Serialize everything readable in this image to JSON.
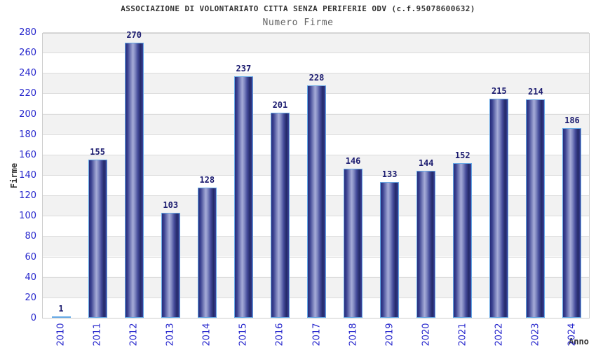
{
  "header": {
    "title": "ASSOCIAZIONE DI VOLONTARIATO CITTA SENZA PERIFERIE ODV (c.f.95078600632)",
    "subtitle": "Numero Firme"
  },
  "chart_data": {
    "type": "bar",
    "title": "ASSOCIAZIONE DI VOLONTARIATO CITTA SENZA PERIFERIE ODV (c.f.95078600632)",
    "subtitle": "Numero Firme",
    "xlabel": "Anno",
    "ylabel": "Firme",
    "categories": [
      "2010",
      "2011",
      "2012",
      "2013",
      "2014",
      "2015",
      "2016",
      "2017",
      "2018",
      "2019",
      "2020",
      "2021",
      "2022",
      "2023",
      "2024"
    ],
    "values": [
      1,
      155,
      270,
      103,
      128,
      237,
      201,
      228,
      146,
      133,
      144,
      152,
      215,
      214,
      186
    ],
    "ylim": [
      0,
      280
    ],
    "ytick_step": 20,
    "yticks": [
      0,
      20,
      40,
      60,
      80,
      100,
      120,
      140,
      160,
      180,
      200,
      220,
      240,
      260,
      280
    ],
    "grid": "horizontal-bands",
    "legend": "none",
    "colors": {
      "tick_label": "#2525cc",
      "value_label": "#1b1b6f",
      "bar_border": "#66a9e6",
      "bar_dark": "#272d7c",
      "bar_light": "#a6acd8",
      "band_gray": "#f2f2f2",
      "gridline": "#dcdcdc",
      "plot_border": "#cccccc",
      "title_color": "#333333",
      "subtitle_color": "#666666"
    }
  }
}
